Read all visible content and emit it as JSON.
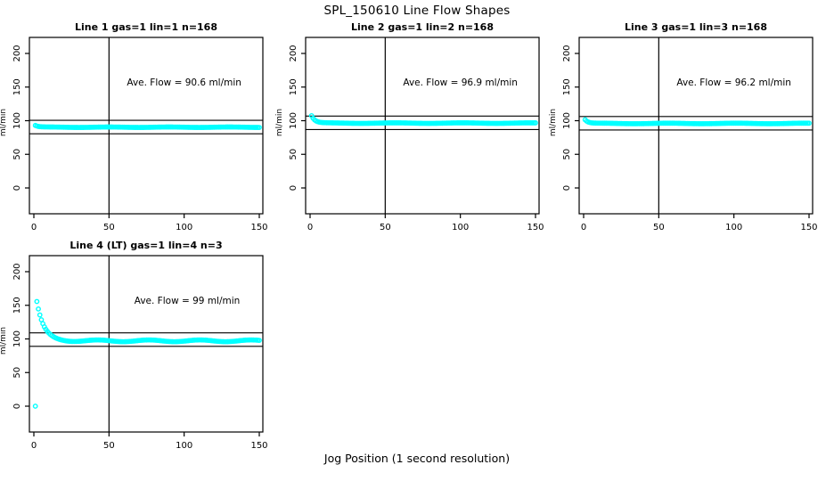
{
  "page": {
    "title": "SPL_150610  Line Flow Shapes",
    "xlabel": "Jog Position (1 second resolution)"
  },
  "style": {
    "point_color": "#00FFFF",
    "line_color": "#000000",
    "background": "#FFFFFF"
  },
  "axes": {
    "xlim": [
      0,
      150
    ],
    "ylim": [
      0,
      200
    ],
    "xticks": [
      0,
      50,
      100,
      150
    ],
    "yticks": [
      0,
      50,
      100,
      150,
      200
    ],
    "ylabel": "ml/min",
    "grid": false
  },
  "chart_data": [
    {
      "type": "scatter",
      "title": "Line 1 gas=1 lin=1 n=168",
      "n": 168,
      "gas": 1,
      "lin": 1,
      "ave_flow": 90.6,
      "annotation": "Ave. Flow =  90.6  ml/min",
      "annotation_pos": {
        "x": 100,
        "y": 152
      },
      "ref_lines_y": [
        100.6,
        80.6
      ],
      "vline_x": 50,
      "series_model": {
        "x_start": 1,
        "x_end": 150,
        "x_step": 1,
        "baseline": 90.3,
        "decay_amp": 2.6,
        "decay_tau": 2.2,
        "wiggle_amp": 0.35,
        "wiggle_period": 40
      },
      "extra_points": []
    },
    {
      "type": "scatter",
      "title": "Line 2 gas=1 lin=2 n=168",
      "n": 168,
      "gas": 1,
      "lin": 2,
      "ave_flow": 96.9,
      "annotation": "Ave. Flow =  96.9  ml/min",
      "annotation_pos": {
        "x": 100,
        "y": 152
      },
      "ref_lines_y": [
        106.9,
        86.9
      ],
      "vline_x": 50,
      "series_model": {
        "x_start": 1,
        "x_end": 150,
        "x_step": 1,
        "baseline": 96.4,
        "decay_amp": 11.0,
        "decay_tau": 2.3,
        "wiggle_amp": 0.4,
        "wiggle_period": 45
      },
      "extra_points": []
    },
    {
      "type": "scatter",
      "title": "Line 3 gas=1 lin=3 n=168",
      "n": 168,
      "gas": 1,
      "lin": 3,
      "ave_flow": 96.2,
      "annotation": "Ave. Flow =  96.2  ml/min",
      "annotation_pos": {
        "x": 100,
        "y": 152
      },
      "ref_lines_y": [
        106.2,
        86.2
      ],
      "vline_x": 50,
      "series_model": {
        "x_start": 1,
        "x_end": 150,
        "x_step": 1,
        "baseline": 95.9,
        "decay_amp": 5.5,
        "decay_tau": 2.0,
        "wiggle_amp": 0.4,
        "wiggle_period": 45
      },
      "extra_points": []
    },
    {
      "type": "scatter",
      "title": "Line 4 (LT) gas=1 lin=4 n=3",
      "n": 3,
      "gas": 1,
      "lin": 4,
      "ave_flow": 99,
      "annotation": "Ave. Flow =  99  ml/min",
      "annotation_pos": {
        "x": 102,
        "y": 152
      },
      "ref_lines_y": [
        109,
        89
      ],
      "vline_x": 50,
      "series_model": {
        "x_start": 2,
        "x_end": 150,
        "x_step": 1,
        "baseline": 97.2,
        "decay_amp": 58.0,
        "decay_tau": 4.6,
        "wiggle_amp": 1.3,
        "wiggle_period": 34
      },
      "extra_points": [
        [
          1,
          0
        ]
      ]
    }
  ]
}
